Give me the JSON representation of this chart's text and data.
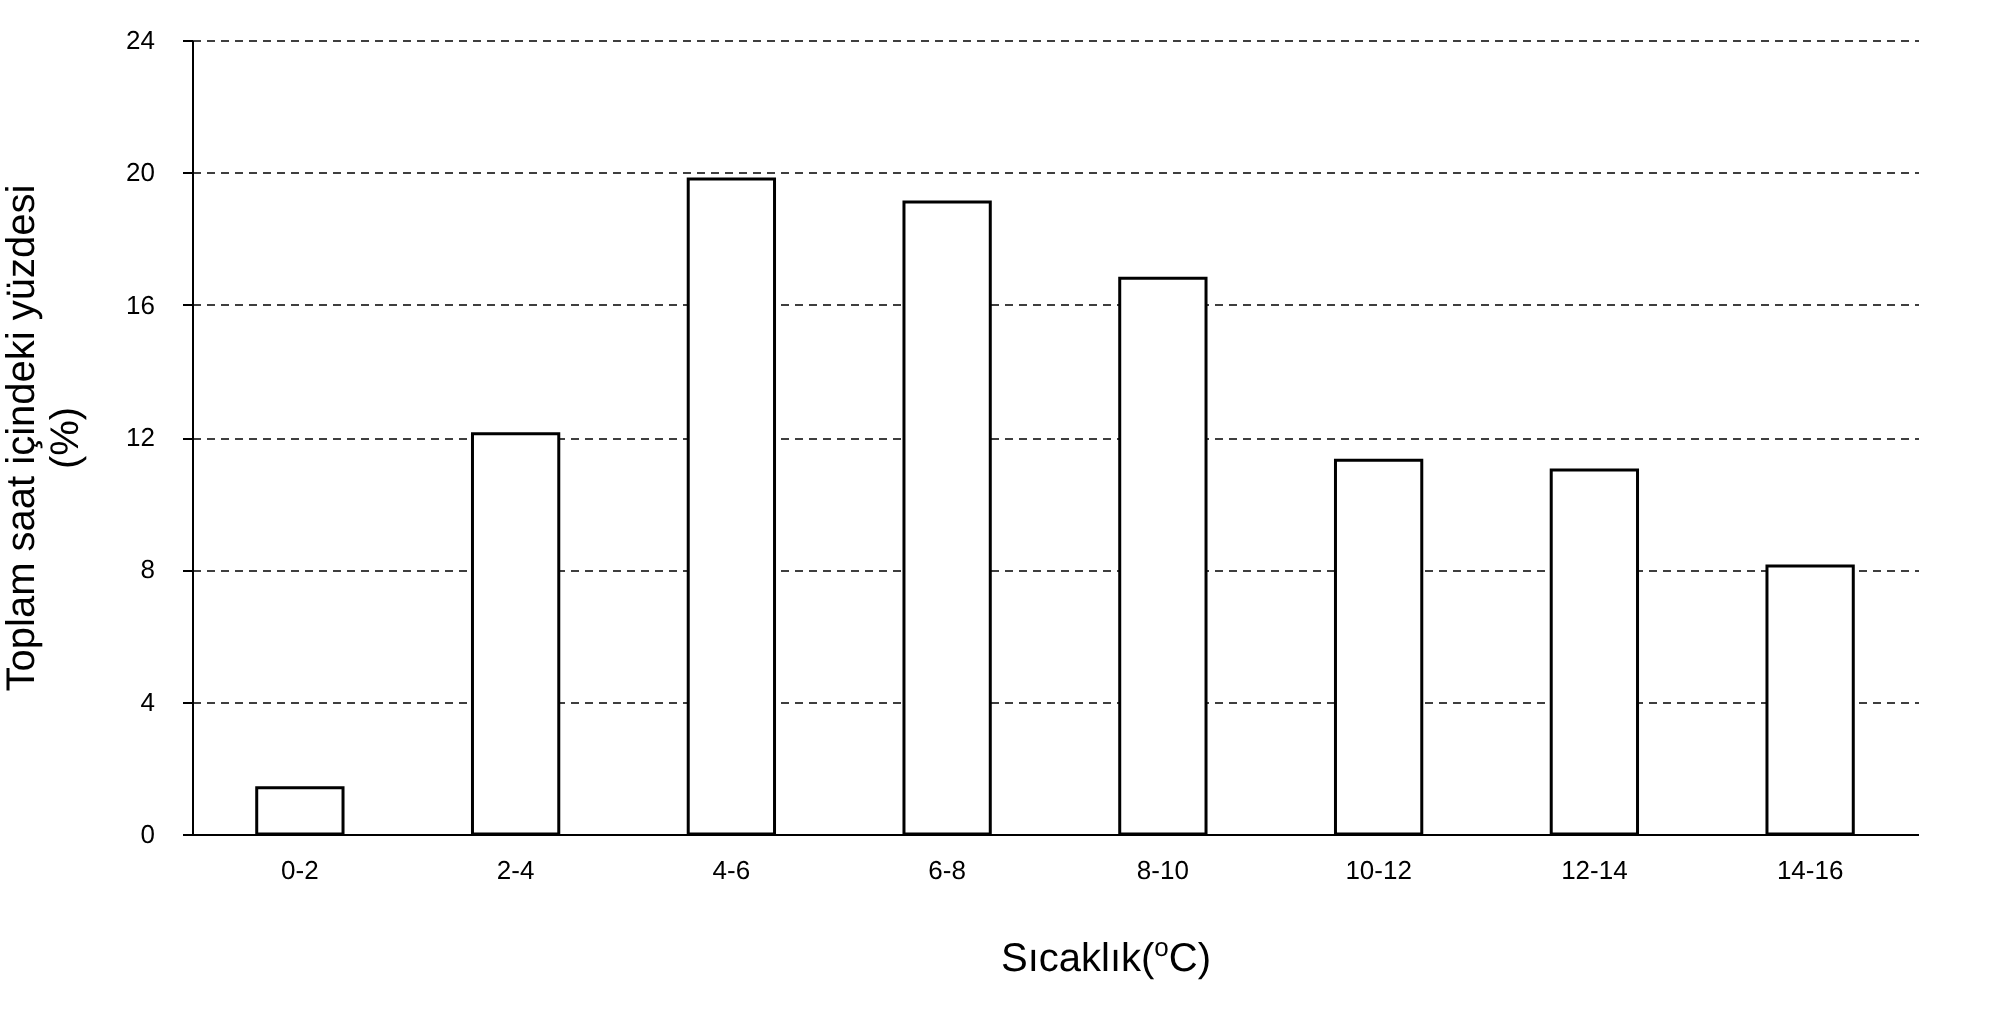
{
  "chart_data": {
    "type": "bar",
    "xlabel": "Sıcaklık($^{o}$C)",
    "ylabel": "Toplam saat içindeki yüzdesi\n(%)",
    "categories": [
      "0-2",
      "2-4",
      "4-6",
      "6-8",
      "8-10",
      "10-12",
      "12-14",
      "14-16"
    ],
    "values": [
      1.4,
      12.1,
      19.8,
      19.1,
      16.8,
      11.3,
      11.0,
      8.1
    ],
    "color": "#ffffff",
    "ylim": [
      0,
      24
    ],
    "yticks": [
      0,
      4,
      8,
      12,
      16,
      20,
      24
    ],
    "grid": "y",
    "line_style": "dashed"
  }
}
